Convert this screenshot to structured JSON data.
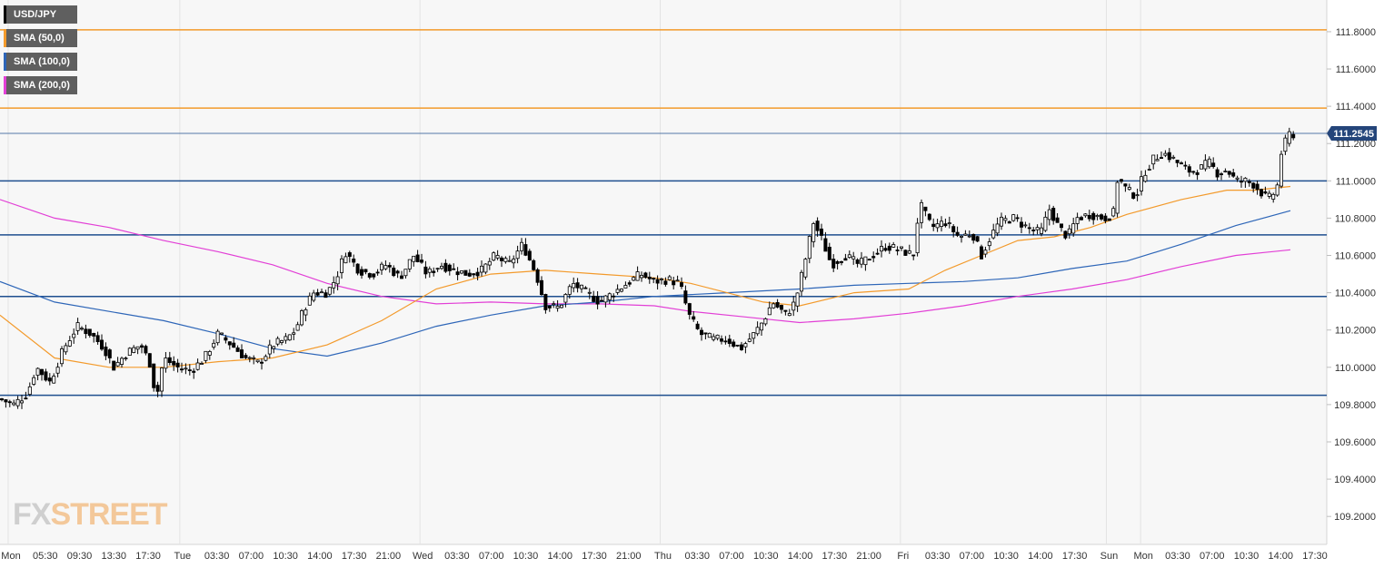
{
  "chart_data": {
    "type": "candlestick",
    "symbol": "USD/JPY",
    "ylim": [
      109.05,
      111.97
    ],
    "yticks": [
      109.2,
      109.4,
      109.6,
      109.8,
      110.0,
      110.2,
      110.4,
      110.6,
      110.8,
      111.0,
      111.2,
      111.4,
      111.6,
      111.8
    ],
    "y_tick_labels": [
      "109.2000",
      "109.4000",
      "109.6000",
      "109.8000",
      "110.0000",
      "110.2000",
      "110.4000",
      "110.6000",
      "110.8000",
      "111.0000",
      "111.2000",
      "111.4000",
      "111.6000",
      "111.8000"
    ],
    "x_tick_labels": [
      "Mon",
      "05:30",
      "09:30",
      "13:30",
      "17:30",
      "Tue",
      "03:30",
      "07:00",
      "10:30",
      "14:00",
      "17:30",
      "21:00",
      "Wed",
      "03:30",
      "07:00",
      "10:30",
      "14:00",
      "17:30",
      "21:00",
      "Thu",
      "03:30",
      "07:00",
      "10:30",
      "14:00",
      "17:30",
      "21:00",
      "Fri",
      "03:30",
      "07:00",
      "10:30",
      "14:00",
      "17:30",
      "Sun",
      "Mon",
      "03:30",
      "07:00",
      "10:30",
      "14:00",
      "17:30"
    ],
    "day_separators": [
      "Tue",
      "Wed",
      "Thu",
      "Fri",
      "Sun",
      "Mon"
    ],
    "last_price": 111.2545,
    "last_price_label": "111.2545",
    "resistance_levels": [
      111.81,
      111.39
    ],
    "support_levels": [
      111.0,
      110.71,
      110.38,
      109.85
    ],
    "legend": [
      {
        "label": "USD/JPY",
        "color": "#000000"
      },
      {
        "label": "SMA (50,0)",
        "color": "#f39a2b"
      },
      {
        "label": "SMA (100,0)",
        "color": "#2e66b8"
      },
      {
        "label": "SMA (200,0)",
        "color": "#e23fd6"
      }
    ],
    "price_path": [
      [
        0,
        109.83
      ],
      [
        15,
        109.8
      ],
      [
        30,
        109.86
      ],
      [
        40,
        110.0
      ],
      [
        55,
        109.92
      ],
      [
        70,
        110.1
      ],
      [
        85,
        110.22
      ],
      [
        100,
        110.18
      ],
      [
        115,
        110.1
      ],
      [
        125,
        110.0
      ],
      [
        140,
        110.08
      ],
      [
        155,
        110.12
      ],
      [
        165,
        110.02
      ],
      [
        172,
        109.83
      ],
      [
        180,
        110.05
      ],
      [
        195,
        110.0
      ],
      [
        210,
        109.98
      ],
      [
        225,
        110.05
      ],
      [
        240,
        110.18
      ],
      [
        255,
        110.12
      ],
      [
        270,
        110.05
      ],
      [
        285,
        110.02
      ],
      [
        300,
        110.12
      ],
      [
        315,
        110.15
      ],
      [
        325,
        110.2
      ],
      [
        335,
        110.32
      ],
      [
        345,
        110.4
      ],
      [
        360,
        110.4
      ],
      [
        370,
        110.48
      ],
      [
        380,
        110.62
      ],
      [
        395,
        110.52
      ],
      [
        410,
        110.5
      ],
      [
        425,
        110.55
      ],
      [
        440,
        110.48
      ],
      [
        455,
        110.6
      ],
      [
        470,
        110.5
      ],
      [
        485,
        110.55
      ],
      [
        500,
        110.52
      ],
      [
        515,
        110.5
      ],
      [
        530,
        110.52
      ],
      [
        545,
        110.6
      ],
      [
        560,
        110.55
      ],
      [
        575,
        110.66
      ],
      [
        590,
        110.5
      ],
      [
        600,
        110.33
      ],
      [
        615,
        110.32
      ],
      [
        630,
        110.45
      ],
      [
        645,
        110.4
      ],
      [
        660,
        110.35
      ],
      [
        675,
        110.4
      ],
      [
        690,
        110.45
      ],
      [
        705,
        110.5
      ],
      [
        720,
        110.46
      ],
      [
        735,
        110.47
      ],
      [
        748,
        110.45
      ],
      [
        758,
        110.28
      ],
      [
        770,
        110.18
      ],
      [
        785,
        110.15
      ],
      [
        800,
        110.15
      ],
      [
        815,
        110.1
      ],
      [
        830,
        110.18
      ],
      [
        840,
        110.25
      ],
      [
        850,
        110.35
      ],
      [
        865,
        110.28
      ],
      [
        875,
        110.35
      ],
      [
        885,
        110.55
      ],
      [
        895,
        110.78
      ],
      [
        905,
        110.68
      ],
      [
        915,
        110.55
      ],
      [
        930,
        110.6
      ],
      [
        945,
        110.55
      ],
      [
        960,
        110.6
      ],
      [
        975,
        110.65
      ],
      [
        990,
        110.63
      ],
      [
        1005,
        110.6
      ],
      [
        1012,
        110.88
      ],
      [
        1025,
        110.75
      ],
      [
        1040,
        110.78
      ],
      [
        1055,
        110.7
      ],
      [
        1070,
        110.72
      ],
      [
        1080,
        110.6
      ],
      [
        1090,
        110.7
      ],
      [
        1100,
        110.78
      ],
      [
        1115,
        110.8
      ],
      [
        1130,
        110.75
      ],
      [
        1145,
        110.72
      ],
      [
        1155,
        110.85
      ],
      [
        1165,
        110.75
      ],
      [
        1175,
        110.7
      ],
      [
        1185,
        110.8
      ],
      [
        1200,
        110.82
      ],
      [
        1215,
        110.8
      ],
      [
        1225,
        110.82
      ],
      [
        1230,
        111.02
      ],
      [
        1240,
        110.95
      ],
      [
        1250,
        110.92
      ],
      [
        1260,
        111.05
      ],
      [
        1270,
        111.12
      ],
      [
        1280,
        111.15
      ],
      [
        1290,
        111.12
      ],
      [
        1300,
        111.08
      ],
      [
        1310,
        111.05
      ],
      [
        1320,
        111.06
      ],
      [
        1330,
        111.1
      ],
      [
        1340,
        111.04
      ],
      [
        1350,
        111.06
      ],
      [
        1360,
        111.0
      ],
      [
        1370,
        111.0
      ],
      [
        1380,
        110.98
      ],
      [
        1395,
        110.9
      ],
      [
        1405,
        110.95
      ],
      [
        1410,
        111.15
      ],
      [
        1418,
        111.25
      ],
      [
        1423,
        111.25
      ]
    ],
    "sma50_path": [
      [
        0,
        110.28
      ],
      [
        60,
        110.05
      ],
      [
        120,
        110.0
      ],
      [
        180,
        110.0
      ],
      [
        240,
        110.03
      ],
      [
        300,
        110.05
      ],
      [
        360,
        110.12
      ],
      [
        420,
        110.25
      ],
      [
        480,
        110.42
      ],
      [
        540,
        110.5
      ],
      [
        600,
        110.52
      ],
      [
        660,
        110.5
      ],
      [
        720,
        110.48
      ],
      [
        760,
        110.45
      ],
      [
        800,
        110.4
      ],
      [
        840,
        110.35
      ],
      [
        880,
        110.33
      ],
      [
        940,
        110.4
      ],
      [
        1000,
        110.42
      ],
      [
        1040,
        110.52
      ],
      [
        1080,
        110.6
      ],
      [
        1120,
        110.68
      ],
      [
        1160,
        110.7
      ],
      [
        1200,
        110.75
      ],
      [
        1240,
        110.82
      ],
      [
        1300,
        110.9
      ],
      [
        1350,
        110.95
      ],
      [
        1380,
        110.95
      ],
      [
        1420,
        110.97
      ]
    ],
    "sma100_path": [
      [
        0,
        110.46
      ],
      [
        60,
        110.35
      ],
      [
        120,
        110.3
      ],
      [
        180,
        110.25
      ],
      [
        240,
        110.18
      ],
      [
        300,
        110.1
      ],
      [
        360,
        110.06
      ],
      [
        420,
        110.13
      ],
      [
        480,
        110.22
      ],
      [
        540,
        110.28
      ],
      [
        600,
        110.33
      ],
      [
        660,
        110.35
      ],
      [
        720,
        110.38
      ],
      [
        800,
        110.4
      ],
      [
        880,
        110.42
      ],
      [
        940,
        110.44
      ],
      [
        1000,
        110.45
      ],
      [
        1060,
        110.46
      ],
      [
        1120,
        110.48
      ],
      [
        1180,
        110.53
      ],
      [
        1240,
        110.57
      ],
      [
        1300,
        110.66
      ],
      [
        1360,
        110.76
      ],
      [
        1420,
        110.84
      ]
    ],
    "sma200_path": [
      [
        0,
        110.9
      ],
      [
        60,
        110.8
      ],
      [
        120,
        110.75
      ],
      [
        180,
        110.68
      ],
      [
        240,
        110.62
      ],
      [
        300,
        110.55
      ],
      [
        360,
        110.45
      ],
      [
        420,
        110.38
      ],
      [
        480,
        110.34
      ],
      [
        540,
        110.35
      ],
      [
        600,
        110.34
      ],
      [
        660,
        110.34
      ],
      [
        720,
        110.33
      ],
      [
        760,
        110.3
      ],
      [
        820,
        110.27
      ],
      [
        880,
        110.24
      ],
      [
        940,
        110.26
      ],
      [
        1000,
        110.29
      ],
      [
        1060,
        110.33
      ],
      [
        1120,
        110.38
      ],
      [
        1180,
        110.42
      ],
      [
        1240,
        110.47
      ],
      [
        1300,
        110.54
      ],
      [
        1360,
        110.6
      ],
      [
        1420,
        110.63
      ]
    ]
  },
  "watermark": {
    "part1": "FX",
    "part2": "STREET"
  }
}
